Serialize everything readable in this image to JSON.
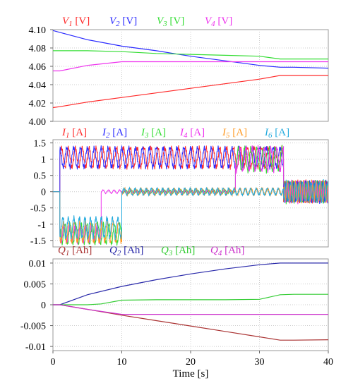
{
  "chart_data": [
    {
      "type": "line",
      "title": "",
      "xlabel": "",
      "ylabel": "",
      "xlim": [
        0,
        40
      ],
      "ylim": [
        4.0,
        4.1
      ],
      "yticks": [
        "4.10",
        "4.08",
        "4.06",
        "4.04",
        "4.02",
        "4.00"
      ],
      "yticks_values": [
        4.1,
        4.08,
        4.06,
        4.04,
        4.02,
        4.0
      ],
      "grid": true,
      "legend_placement": "top",
      "series": [
        {
          "name": "V1 [V]",
          "label_main": "V",
          "label_sub": "1",
          "label_unit": " [V]",
          "color": "#ff2a2a",
          "x": [
            0,
            1,
            5,
            10,
            15,
            20,
            25,
            30,
            33,
            35,
            40
          ],
          "y": [
            4.015,
            4.016,
            4.021,
            4.026,
            4.031,
            4.036,
            4.041,
            4.046,
            4.05,
            4.05,
            4.05
          ]
        },
        {
          "name": "V2 [V]",
          "label_main": "V",
          "label_sub": "2",
          "label_unit": " [V]",
          "color": "#2a2aff",
          "x": [
            0,
            1,
            5,
            10,
            15,
            20,
            25,
            30,
            33,
            35,
            40
          ],
          "y": [
            4.099,
            4.097,
            4.089,
            4.082,
            4.077,
            4.071,
            4.066,
            4.061,
            4.059,
            4.059,
            4.058
          ]
        },
        {
          "name": "V3 [V]",
          "label_main": "V",
          "label_sub": "3",
          "label_unit": " [V]",
          "color": "#33dd33",
          "x": [
            0,
            1,
            5,
            10,
            15,
            20,
            25,
            30,
            33,
            35,
            40
          ],
          "y": [
            4.077,
            4.077,
            4.077,
            4.076,
            4.074,
            4.073,
            4.072,
            4.071,
            4.068,
            4.068,
            4.068
          ]
        },
        {
          "name": "V4 [V]",
          "label_main": "V",
          "label_sub": "4",
          "label_unit": " [V]",
          "color": "#ee33ee",
          "x": [
            0,
            1,
            5,
            10,
            15,
            20,
            25,
            30,
            33,
            35,
            40
          ],
          "y": [
            4.055,
            4.055,
            4.061,
            4.065,
            4.065,
            4.065,
            4.065,
            4.065,
            4.065,
            4.065,
            4.065
          ]
        }
      ]
    },
    {
      "type": "line",
      "title": "",
      "xlabel": "",
      "ylabel": "",
      "xlim": [
        0,
        40
      ],
      "ylim": [
        -1.7,
        1.6
      ],
      "yticks": [
        "1.5",
        "1",
        "0.5",
        "0",
        "-0.5",
        "-1",
        "-1.5"
      ],
      "yticks_values": [
        1.5,
        1,
        0.5,
        0,
        -0.5,
        -1,
        -1.5
      ],
      "grid": true,
      "legend_placement": "top",
      "series": [
        {
          "name": "I1 [A]",
          "label_main": "I",
          "label_sub": "1",
          "label_unit": " [A]",
          "color": "#ff2a2a",
          "segments": [
            {
              "x0": 1,
              "x1": 33.5,
              "center": 1.05,
              "amp": 0.3,
              "period": 1.0,
              "phase": 0.0
            },
            {
              "x0": 33.5,
              "x1": 40,
              "center": 0.0,
              "amp": 0.3,
              "period": 0.6,
              "phase": 0.0
            }
          ]
        },
        {
          "name": "I2 [A]",
          "label_main": "I",
          "label_sub": "2",
          "label_unit": " [A]",
          "color": "#2a2aff",
          "segments": [
            {
              "x0": 1,
              "x1": 33.5,
              "center": 1.05,
              "amp": 0.3,
              "period": 1.0,
              "phase": 0.5
            },
            {
              "x0": 33.5,
              "x1": 40,
              "center": 0.0,
              "amp": 0.3,
              "period": 0.6,
              "phase": 0.3
            }
          ]
        },
        {
          "name": "I3 [A]",
          "label_main": "I",
          "label_sub": "3",
          "label_unit": " [A]",
          "color": "#33dd33",
          "segments": [
            {
              "x0": 1,
              "x1": 10,
              "center": -1.3,
              "amp": 0.3,
              "period": 0.8,
              "phase": 0.2
            },
            {
              "x0": 10,
              "x1": 26.5,
              "center": 0.0,
              "amp": 0.05,
              "period": 0.8,
              "phase": 0.0
            },
            {
              "x0": 26.5,
              "x1": 33.5,
              "center": 1.0,
              "amp": 0.35,
              "period": 0.9,
              "phase": 0.6
            },
            {
              "x0": 33.5,
              "x1": 40,
              "center": 0.0,
              "amp": 0.3,
              "period": 0.6,
              "phase": 0.6
            }
          ]
        },
        {
          "name": "I4 [A]",
          "label_main": "I",
          "label_sub": "4",
          "label_unit": " [A]",
          "color": "#ee33ee",
          "segments": [
            {
              "x0": 1,
              "x1": 7,
              "center": -1.3,
              "amp": 0.25,
              "period": 0.8,
              "phase": 0.5
            },
            {
              "x0": 7,
              "x1": 26.5,
              "center": 0.0,
              "amp": 0.05,
              "period": 0.8,
              "phase": 0.3
            },
            {
              "x0": 26.5,
              "x1": 33.5,
              "center": 1.0,
              "amp": 0.35,
              "period": 0.9,
              "phase": 0.2
            },
            {
              "x0": 33.5,
              "x1": 40,
              "center": 0.0,
              "amp": 0.3,
              "period": 0.6,
              "phase": 0.9
            }
          ]
        },
        {
          "name": "I5 [A]",
          "label_main": "I",
          "label_sub": "5",
          "label_unit": " [A]",
          "color": "#ff9922",
          "segments": [
            {
              "x0": 1,
              "x1": 10,
              "center": -1.25,
              "amp": 0.3,
              "period": 0.8,
              "phase": 0.7
            },
            {
              "x0": 10,
              "x1": 33.5,
              "center": 0.0,
              "amp": 0.1,
              "period": 0.8,
              "phase": 0.5
            },
            {
              "x0": 33.5,
              "x1": 40,
              "center": 0.0,
              "amp": 0.3,
              "period": 0.6,
              "phase": 1.2
            }
          ]
        },
        {
          "name": "I6 [A]",
          "label_main": "I",
          "label_sub": "6",
          "label_unit": " [A]",
          "color": "#22aadd",
          "segments": [
            {
              "x0": 1,
              "x1": 10,
              "center": -1.1,
              "amp": 0.3,
              "period": 0.8,
              "phase": 0.9
            },
            {
              "x0": 10,
              "x1": 33.5,
              "center": 0.0,
              "amp": 0.1,
              "period": 0.8,
              "phase": 0.7
            },
            {
              "x0": 33.5,
              "x1": 40,
              "center": 0.0,
              "amp": 0.3,
              "period": 0.6,
              "phase": 1.5
            }
          ]
        }
      ]
    },
    {
      "type": "line",
      "title": "",
      "xlabel": "Time [s]",
      "ylabel": "",
      "xlim": [
        0,
        40
      ],
      "ylim": [
        -0.011,
        0.011
      ],
      "xticks": [
        "0",
        "10",
        "20",
        "30",
        "40"
      ],
      "xticks_values": [
        0,
        10,
        20,
        30,
        40
      ],
      "yticks": [
        "0.01",
        "0.005",
        "0",
        "-0.005",
        "-0.01"
      ],
      "yticks_values": [
        0.01,
        0.005,
        0,
        -0.005,
        -0.01
      ],
      "grid": true,
      "legend_placement": "top",
      "series": [
        {
          "name": "Q1 [Ah]",
          "label_main": "Q",
          "label_sub": "1",
          "label_unit": " [Ah]",
          "color": "#aa3333",
          "x": [
            0,
            1,
            5,
            10,
            15,
            20,
            25,
            30,
            33,
            35,
            40
          ],
          "y": [
            0,
            0,
            -0.0011,
            -0.0025,
            -0.0038,
            -0.0051,
            -0.0064,
            -0.0077,
            -0.0085,
            -0.0085,
            -0.0084
          ]
        },
        {
          "name": "Q2 [Ah]",
          "label_main": "Q",
          "label_sub": "2",
          "label_unit": " [Ah]",
          "color": "#2a2aaa",
          "x": [
            0,
            1,
            5,
            10,
            15,
            20,
            25,
            30,
            33,
            35,
            40
          ],
          "y": [
            0,
            0,
            0.0024,
            0.0044,
            0.006,
            0.0074,
            0.0086,
            0.0096,
            0.01,
            0.01,
            0.01
          ]
        },
        {
          "name": "Q3 [Ah]",
          "label_main": "Q",
          "label_sub": "3",
          "label_unit": " [Ah]",
          "color": "#33cc33",
          "x": [
            0,
            1,
            5,
            7,
            10,
            15,
            20,
            25,
            30,
            33,
            35,
            40
          ],
          "y": [
            0,
            0,
            0,
            0.0002,
            0.0011,
            0.0012,
            0.0012,
            0.0012,
            0.0013,
            0.0024,
            0.0025,
            0.0025
          ]
        },
        {
          "name": "Q4 [Ah]",
          "label_main": "Q",
          "label_sub": "4",
          "label_unit": " [Ah]",
          "color": "#cc33cc",
          "x": [
            0,
            1,
            5,
            10,
            15,
            20,
            25,
            30,
            33,
            35,
            40
          ],
          "y": [
            0,
            0,
            -0.0011,
            -0.0023,
            -0.0023,
            -0.0023,
            -0.0023,
            -0.0023,
            -0.0023,
            -0.0023,
            -0.0023
          ]
        }
      ]
    }
  ]
}
